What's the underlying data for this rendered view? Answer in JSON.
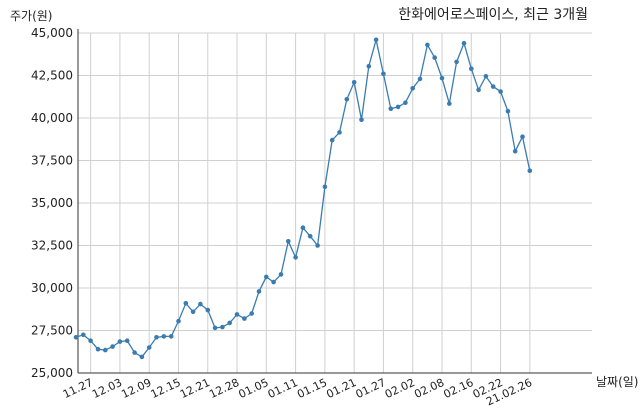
{
  "chart_data": {
    "type": "line",
    "title": "한화에어로스페이스, 최근 3개월",
    "ylabel": "주가(원)",
    "xlabel": "날짜(일)",
    "ylim": [
      25000,
      45000
    ],
    "yticks": [
      25000,
      27500,
      30000,
      32500,
      35000,
      37500,
      40000,
      42500,
      45000
    ],
    "ytick_labels": [
      "25,000",
      "27,500",
      "30,000",
      "32,500",
      "35,000",
      "37,500",
      "40,000",
      "42,500",
      "45,000"
    ],
    "xtick_labels": [
      "11.27",
      "12.03",
      "12.09",
      "12.15",
      "12.21",
      "12.28",
      "01.05",
      "01.11",
      "01.15",
      "01.21",
      "01.27",
      "02.02",
      "02.08",
      "02.16",
      "02.22",
      "21.02.26"
    ],
    "xtick_index": [
      2,
      6,
      10,
      14,
      18,
      22,
      26,
      30,
      34,
      38,
      42,
      46,
      50,
      54,
      58,
      62
    ],
    "grid": true,
    "line_color": "#3a7cb0",
    "series": [
      {
        "values": [
          27100,
          27250,
          26900,
          26400,
          26350,
          26550,
          26850,
          26900,
          26200,
          25950,
          26500,
          27100,
          27150,
          27150,
          28050,
          29100,
          28600,
          29050,
          28700,
          27650,
          27700,
          27950,
          28450,
          28200,
          28500,
          29800,
          30650,
          30350,
          30800,
          32750,
          31800,
          33550,
          33050,
          32500,
          35950,
          38700,
          39150,
          41100,
          42100,
          39900,
          43050,
          44600,
          42600,
          40550,
          40650,
          40900,
          41750,
          42300,
          44300,
          43550,
          42350,
          40850,
          43300,
          44400,
          42900,
          41650,
          42450,
          41850,
          41550,
          40400,
          38050,
          38900,
          36900
        ]
      }
    ]
  }
}
